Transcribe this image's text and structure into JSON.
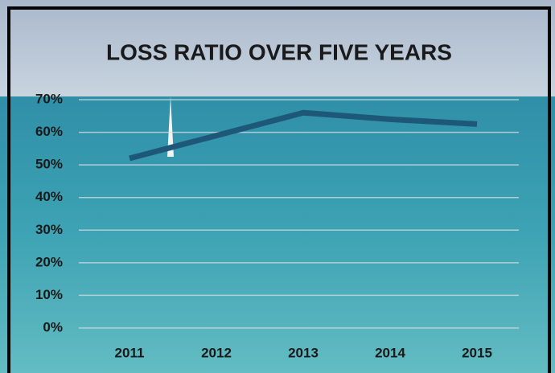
{
  "chart_data": {
    "type": "line",
    "title": "LOSS RATIO OVER FIVE YEARS",
    "categories": [
      "2011",
      "2012",
      "2013",
      "2014",
      "2015"
    ],
    "values": [
      52,
      59,
      66,
      64,
      62.5
    ],
    "color": "#1e5878",
    "ylim": [
      0,
      70
    ],
    "yticks": [
      {
        "value": 0,
        "label": "0%"
      },
      {
        "value": 10,
        "label": "10%"
      },
      {
        "value": 20,
        "label": "20%"
      },
      {
        "value": 30,
        "label": "30%"
      },
      {
        "value": 40,
        "label": "40%"
      },
      {
        "value": 50,
        "label": "50%"
      },
      {
        "value": 60,
        "label": "60%"
      },
      {
        "value": 70,
        "label": "70%"
      }
    ],
    "grid": true
  }
}
